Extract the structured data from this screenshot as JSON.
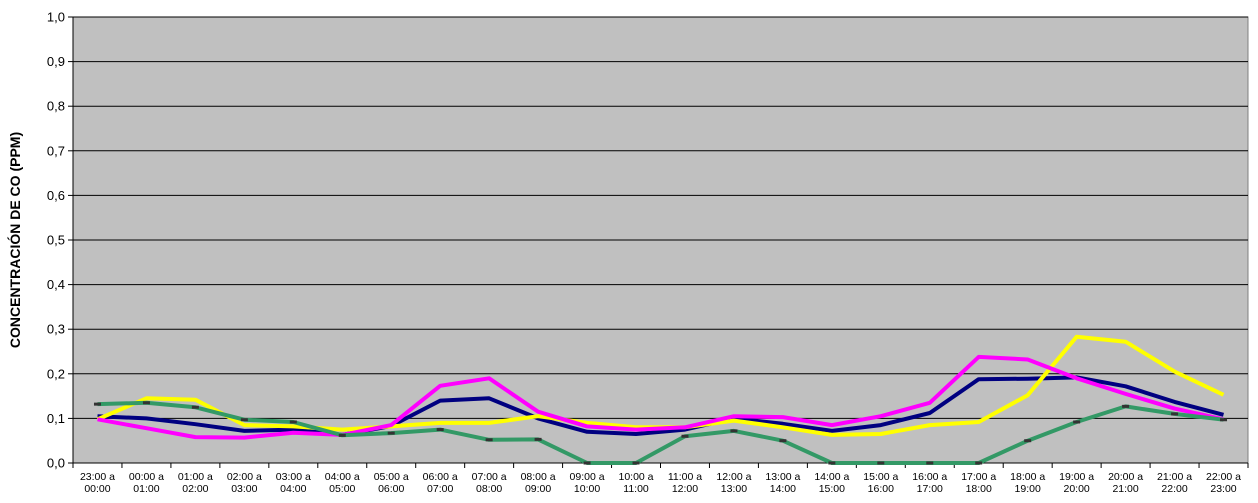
{
  "chart_data": {
    "type": "line",
    "ylabel": "CONCENTRACIÓN DE CO (PPM)",
    "xlabel": "",
    "ylim": [
      0,
      1.0
    ],
    "yticks": [
      0.0,
      0.1,
      0.2,
      0.3,
      0.4,
      0.5,
      0.6,
      0.7,
      0.8,
      0.9,
      1.0
    ],
    "ytick_labels": [
      "0,0",
      "0,1",
      "0,2",
      "0,3",
      "0,4",
      "0,5",
      "0,6",
      "0,7",
      "0,8",
      "0,9",
      "1,0"
    ],
    "grid": "horizontal",
    "plot_background": "#C0C0C0",
    "categories": [
      [
        "23:00 a",
        "00:00"
      ],
      [
        "00:00 a",
        "01:00"
      ],
      [
        "01:00 a",
        "02:00"
      ],
      [
        "02:00 a",
        "03:00"
      ],
      [
        "03:00 a",
        "04:00"
      ],
      [
        "04:00 a",
        "05:00"
      ],
      [
        "05:00 a",
        "06:00"
      ],
      [
        "06:00 a",
        "07:00"
      ],
      [
        "07:00 a",
        "08:00"
      ],
      [
        "08:00 a",
        "09:00"
      ],
      [
        "09:00 a",
        "10:00"
      ],
      [
        "10:00 a",
        "11:00"
      ],
      [
        "11:00 a",
        "12:00"
      ],
      [
        "12:00 a",
        "13:00"
      ],
      [
        "13:00 a",
        "14:00"
      ],
      [
        "14:00 a",
        "15:00"
      ],
      [
        "15:00 a",
        "16:00"
      ],
      [
        "16:00 a",
        "17:00"
      ],
      [
        "17:00 a",
        "18:00"
      ],
      [
        "18:00 a",
        "19:00"
      ],
      [
        "19:00 a",
        "20:00"
      ],
      [
        "20:00 a",
        "21:00"
      ],
      [
        "21:00 a",
        "22:00"
      ],
      [
        "22:00 a",
        "23:00"
      ]
    ],
    "series": [
      {
        "color": "#000080",
        "values": [
          0.105,
          0.1,
          0.087,
          0.072,
          0.075,
          0.063,
          0.083,
          0.14,
          0.145,
          0.1,
          0.07,
          0.065,
          0.075,
          0.1,
          0.088,
          0.072,
          0.085,
          0.112,
          0.188,
          0.189,
          0.192,
          0.172,
          0.137,
          0.108
        ]
      },
      {
        "color": "#FFFF00",
        "values": [
          0.098,
          0.145,
          0.142,
          0.085,
          0.082,
          0.075,
          0.082,
          0.09,
          0.09,
          0.105,
          0.09,
          0.08,
          0.08,
          0.095,
          0.08,
          0.063,
          0.065,
          0.085,
          0.092,
          0.152,
          0.283,
          0.272,
          0.205,
          0.153
        ]
      },
      {
        "color": "#FF00FF",
        "values": [
          0.098,
          0.078,
          0.058,
          0.057,
          0.068,
          0.063,
          0.085,
          0.173,
          0.19,
          0.115,
          0.082,
          0.075,
          0.08,
          0.105,
          0.103,
          0.085,
          0.105,
          0.135,
          0.238,
          0.232,
          0.19,
          0.155,
          0.122,
          0.098
        ]
      },
      {
        "color": "#339966",
        "marker": "dash",
        "values": [
          0.132,
          0.135,
          0.125,
          0.097,
          0.092,
          0.062,
          0.067,
          0.075,
          0.052,
          0.053,
          0.0,
          0.0,
          0.06,
          0.072,
          0.05,
          0.0,
          0.0,
          0.0,
          0.0,
          0.05,
          0.092,
          0.127,
          0.11,
          0.097
        ]
      }
    ]
  }
}
